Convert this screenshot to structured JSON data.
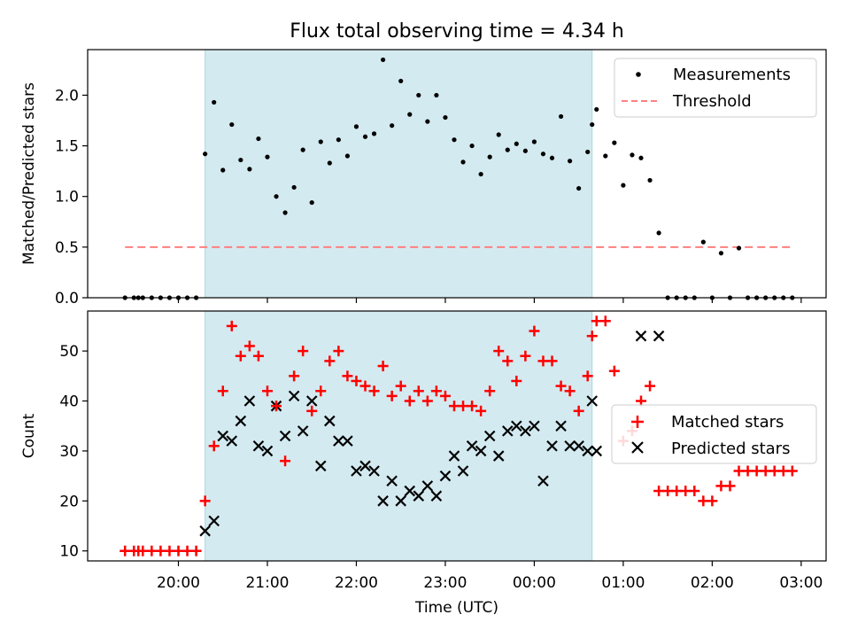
{
  "chart_data": {
    "title": "Flux total observing time = 4.34 h",
    "xlabel": "Time (UTC)",
    "x_ticks": [
      "20:00",
      "21:00",
      "22:00",
      "23:00",
      "00:00",
      "01:00",
      "02:00",
      "03:00"
    ],
    "x_range_hours": [
      18.98,
      27.28
    ],
    "observing_window_hours": [
      20.3,
      24.65
    ],
    "observing_window_color": "#d3eaf0",
    "panels": [
      {
        "type": "scatter",
        "ylabel": "Matched/Predicted stars",
        "ylim": [
          0,
          2.45
        ],
        "yticks": [
          0.0,
          0.5,
          1.0,
          1.5,
          2.0
        ],
        "legend_position": "upper right",
        "series": [
          {
            "name": "Measurements",
            "color": "#000000",
            "marker": "dot",
            "x": [
              19.4,
              19.5,
              19.55,
              19.6,
              19.7,
              19.8,
              19.9,
              20.0,
              20.1,
              20.2,
              20.3,
              20.4,
              20.5,
              20.6,
              20.7,
              20.8,
              20.9,
              21.0,
              21.1,
              21.2,
              21.3,
              21.4,
              21.5,
              21.6,
              21.7,
              21.8,
              21.9,
              22.0,
              22.1,
              22.2,
              22.3,
              22.4,
              22.5,
              22.6,
              22.7,
              22.8,
              22.9,
              23.0,
              23.1,
              23.2,
              23.3,
              23.4,
              23.5,
              23.6,
              23.7,
              23.8,
              23.9,
              24.0,
              24.1,
              24.2,
              24.3,
              24.4,
              24.5,
              24.6,
              24.65,
              24.7,
              24.8,
              24.9,
              25.0,
              25.1,
              25.2,
              25.3,
              25.4,
              25.5,
              25.6,
              25.7,
              25.8,
              25.9,
              26.0,
              26.1,
              26.2,
              26.3,
              26.4,
              26.5,
              26.6,
              26.7,
              26.8,
              26.9
            ],
            "y": [
              0,
              0,
              0,
              0,
              0,
              0,
              0,
              0,
              0,
              0,
              1.42,
              1.93,
              1.26,
              1.71,
              1.36,
              1.27,
              1.57,
              1.39,
              1.0,
              0.84,
              1.09,
              1.46,
              0.94,
              1.54,
              1.33,
              1.56,
              1.4,
              1.69,
              1.59,
              1.62,
              2.35,
              1.7,
              2.14,
              1.81,
              2.0,
              1.74,
              2.0,
              1.78,
              1.56,
              1.34,
              1.5,
              1.22,
              1.39,
              1.61,
              1.46,
              1.52,
              1.45,
              1.54,
              1.42,
              1.38,
              1.79,
              1.35,
              1.08,
              1.44,
              1.71,
              1.86,
              1.4,
              1.53,
              1.11,
              1.41,
              1.38,
              1.16,
              0.64,
              0,
              0,
              0,
              0,
              0.55,
              0,
              0.44,
              0,
              0.49,
              0,
              0,
              0,
              0,
              0,
              0
            ]
          },
          {
            "name": "Threshold",
            "color": "#ff7f7f",
            "style": "dashed",
            "x": [
              19.4,
              26.9
            ],
            "y": [
              0.5,
              0.5
            ]
          }
        ]
      },
      {
        "type": "scatter",
        "ylabel": "Count",
        "ylim": [
          8,
          58
        ],
        "yticks": [
          10,
          20,
          30,
          40,
          50
        ],
        "legend_position": "center right",
        "series": [
          {
            "name": "Matched stars",
            "color": "#ff0000",
            "marker": "plus",
            "x": [
              19.4,
              19.5,
              19.55,
              19.6,
              19.7,
              19.8,
              19.9,
              20.0,
              20.1,
              20.2,
              20.3,
              20.4,
              20.5,
              20.6,
              20.7,
              20.8,
              20.9,
              21.0,
              21.1,
              21.2,
              21.3,
              21.4,
              21.5,
              21.6,
              21.7,
              21.8,
              21.9,
              22.0,
              22.1,
              22.2,
              22.3,
              22.4,
              22.5,
              22.6,
              22.7,
              22.8,
              22.9,
              23.0,
              23.1,
              23.2,
              23.3,
              23.4,
              23.5,
              23.6,
              23.7,
              23.8,
              23.9,
              24.0,
              24.1,
              24.2,
              24.3,
              24.4,
              24.5,
              24.6,
              24.65,
              24.7,
              24.8,
              24.9,
              25.0,
              25.1,
              25.2,
              25.3,
              25.4,
              25.5,
              25.6,
              25.7,
              25.8,
              25.9,
              26.0,
              26.1,
              26.2,
              26.3,
              26.4,
              26.5,
              26.6,
              26.7,
              26.8,
              26.9
            ],
            "y": [
              10,
              10,
              10,
              10,
              10,
              10,
              10,
              10,
              10,
              10,
              20,
              31,
              42,
              55,
              49,
              51,
              49,
              42,
              39,
              28,
              45,
              50,
              38,
              42,
              48,
              50,
              45,
              44,
              43,
              42,
              47,
              41,
              43,
              40,
              42,
              40,
              42,
              41,
              39,
              39,
              39,
              38,
              42,
              50,
              48,
              44,
              49,
              54,
              48,
              48,
              43,
              42,
              38,
              45,
              53,
              56,
              56,
              46,
              32,
              34,
              40,
              43,
              22,
              22,
              22,
              22,
              22,
              20,
              20,
              23,
              23,
              26,
              26,
              26,
              26,
              26,
              26,
              26
            ]
          },
          {
            "name": "Predicted stars",
            "color": "#000000",
            "marker": "x",
            "x": [
              20.3,
              20.4,
              20.5,
              20.6,
              20.7,
              20.8,
              20.9,
              21.0,
              21.1,
              21.2,
              21.3,
              21.4,
              21.5,
              21.6,
              21.7,
              21.8,
              21.9,
              22.0,
              22.1,
              22.2,
              22.3,
              22.4,
              22.5,
              22.6,
              22.7,
              22.8,
              22.9,
              23.0,
              23.1,
              23.2,
              23.3,
              23.4,
              23.5,
              23.6,
              23.7,
              23.8,
              23.9,
              24.0,
              24.1,
              24.2,
              24.3,
              24.4,
              24.5,
              24.6,
              24.65,
              24.7,
              25.2,
              25.4
            ],
            "y": [
              14,
              16,
              33,
              32,
              36,
              40,
              31,
              30,
              39,
              33,
              41,
              34,
              40,
              27,
              36,
              32,
              32,
              26,
              27,
              26,
              20,
              24,
              20,
              22,
              21,
              23,
              21,
              25,
              29,
              26,
              31,
              30,
              33,
              29,
              34,
              35,
              34,
              35,
              24,
              31,
              35,
              31,
              31,
              30,
              40,
              30,
              53,
              53
            ]
          }
        ]
      }
    ]
  }
}
